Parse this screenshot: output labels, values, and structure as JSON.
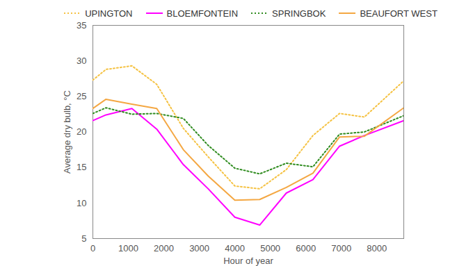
{
  "chart_data": {
    "type": "line",
    "x_label": "Hour of year",
    "y_label": "Average dry bulb, °C",
    "x": [
      0,
      370,
      1100,
      1800,
      2550,
      3250,
      4000,
      4700,
      5450,
      6200,
      6950,
      7650,
      8760
    ],
    "series": [
      {
        "name": "UPINGTON",
        "color": "#f5c242",
        "line_style": "dotted",
        "values": [
          27.3,
          28.8,
          29.3,
          26.7,
          20.5,
          16.5,
          12.4,
          12.0,
          14.7,
          19.5,
          22.6,
          22.1,
          27.2
        ]
      },
      {
        "name": "BLOEMFONTEIN",
        "color": "#ff00ff",
        "line_style": "solid",
        "values": [
          21.6,
          22.4,
          23.3,
          20.4,
          15.4,
          12.0,
          8.0,
          6.9,
          11.4,
          13.3,
          18.0,
          19.5,
          21.6
        ]
      },
      {
        "name": "SPRINGBOK",
        "color": "#2e8b1e",
        "line_style": "dotted",
        "values": [
          22.6,
          23.4,
          22.5,
          22.6,
          21.9,
          18.1,
          14.9,
          14.1,
          15.6,
          15.1,
          19.7,
          20.0,
          22.3
        ]
      },
      {
        "name": "BEAUFORT WEST",
        "color": "#f4a742",
        "line_style": "solid",
        "values": [
          23.3,
          24.6,
          23.9,
          23.3,
          17.5,
          13.8,
          10.4,
          10.5,
          12.2,
          14.2,
          19.3,
          19.4,
          23.4
        ]
      }
    ],
    "xlim": [
      0,
      8760
    ],
    "xticks": [
      0,
      1000,
      2000,
      3000,
      4000,
      5000,
      6000,
      7000,
      8000
    ],
    "ylim": [
      5,
      35
    ],
    "yticks": [
      5,
      10,
      15,
      20,
      25,
      30,
      35
    ],
    "legend": "top",
    "grid": false
  }
}
